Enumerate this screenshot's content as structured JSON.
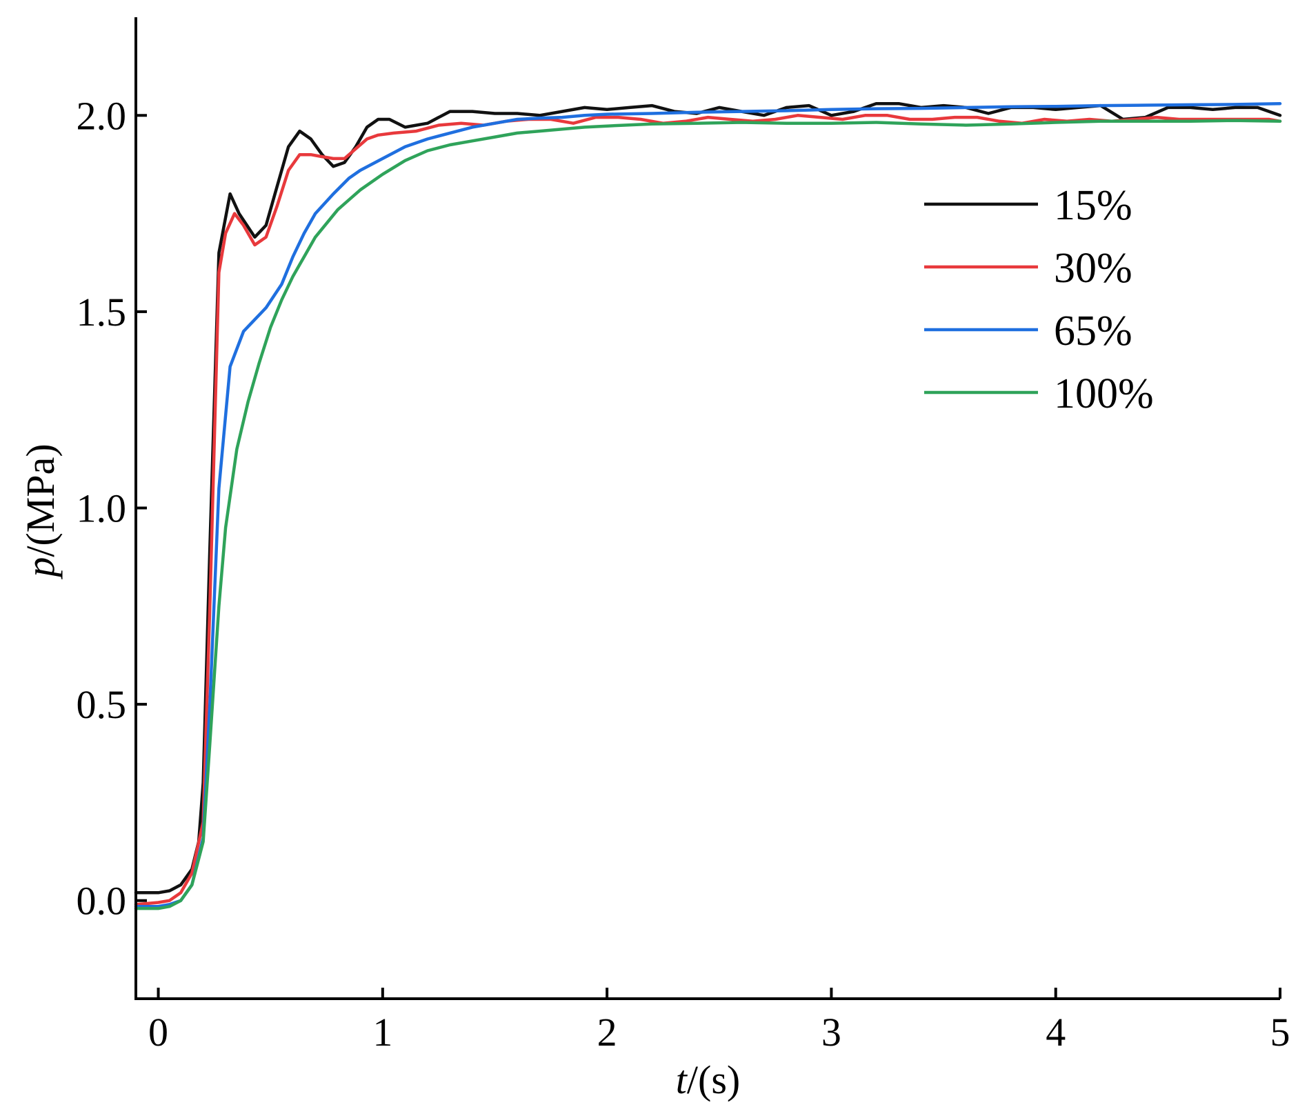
{
  "chart_data": {
    "type": "line",
    "title": "",
    "xlabel": {
      "var": "t",
      "unit": "/(s)"
    },
    "ylabel": {
      "var": "p",
      "unit": "/(MPa)"
    },
    "xlim": [
      -0.1,
      5.0
    ],
    "ylim": [
      -0.25,
      2.25
    ],
    "xticks": [
      0,
      1,
      2,
      3,
      4,
      5
    ],
    "xtick_labels": [
      "0",
      "1",
      "2",
      "3",
      "4",
      "5"
    ],
    "yticks": [
      0.0,
      0.5,
      1.0,
      1.5,
      2.0
    ],
    "ytick_labels": [
      "0.0",
      "0.5",
      "1.0",
      "1.5",
      "2.0"
    ],
    "grid": false,
    "legend_position": "right-center",
    "series": [
      {
        "name": "15%",
        "color": "#111111",
        "points": [
          [
            -0.1,
            0.02
          ],
          [
            0.0,
            0.02
          ],
          [
            0.05,
            0.025
          ],
          [
            0.1,
            0.04
          ],
          [
            0.15,
            0.08
          ],
          [
            0.18,
            0.15
          ],
          [
            0.2,
            0.3
          ],
          [
            0.23,
            0.9
          ],
          [
            0.27,
            1.65
          ],
          [
            0.32,
            1.8
          ],
          [
            0.36,
            1.75
          ],
          [
            0.43,
            1.69
          ],
          [
            0.48,
            1.72
          ],
          [
            0.53,
            1.82
          ],
          [
            0.58,
            1.92
          ],
          [
            0.63,
            1.96
          ],
          [
            0.68,
            1.94
          ],
          [
            0.73,
            1.9
          ],
          [
            0.78,
            1.87
          ],
          [
            0.83,
            1.88
          ],
          [
            0.88,
            1.92
          ],
          [
            0.93,
            1.97
          ],
          [
            0.98,
            1.99
          ],
          [
            1.03,
            1.99
          ],
          [
            1.1,
            1.97
          ],
          [
            1.2,
            1.98
          ],
          [
            1.3,
            2.01
          ],
          [
            1.4,
            2.01
          ],
          [
            1.5,
            2.005
          ],
          [
            1.6,
            2.005
          ],
          [
            1.7,
            2.0
          ],
          [
            1.8,
            2.01
          ],
          [
            1.9,
            2.02
          ],
          [
            2.0,
            2.015
          ],
          [
            2.1,
            2.02
          ],
          [
            2.2,
            2.025
          ],
          [
            2.3,
            2.01
          ],
          [
            2.4,
            2.005
          ],
          [
            2.5,
            2.02
          ],
          [
            2.6,
            2.01
          ],
          [
            2.7,
            2.0
          ],
          [
            2.8,
            2.02
          ],
          [
            2.9,
            2.025
          ],
          [
            3.0,
            2.0
          ],
          [
            3.1,
            2.01
          ],
          [
            3.2,
            2.03
          ],
          [
            3.3,
            2.03
          ],
          [
            3.4,
            2.02
          ],
          [
            3.5,
            2.025
          ],
          [
            3.6,
            2.02
          ],
          [
            3.7,
            2.005
          ],
          [
            3.8,
            2.02
          ],
          [
            3.9,
            2.02
          ],
          [
            4.0,
            2.015
          ],
          [
            4.1,
            2.02
          ],
          [
            4.2,
            2.025
          ],
          [
            4.3,
            1.99
          ],
          [
            4.4,
            1.995
          ],
          [
            4.5,
            2.02
          ],
          [
            4.6,
            2.02
          ],
          [
            4.7,
            2.015
          ],
          [
            4.8,
            2.02
          ],
          [
            4.9,
            2.02
          ],
          [
            5.0,
            2.0
          ]
        ]
      },
      {
        "name": "30%",
        "color": "#e8393c",
        "points": [
          [
            -0.1,
            -0.01
          ],
          [
            0.0,
            -0.005
          ],
          [
            0.05,
            0.0
          ],
          [
            0.1,
            0.02
          ],
          [
            0.15,
            0.07
          ],
          [
            0.2,
            0.2
          ],
          [
            0.23,
            0.75
          ],
          [
            0.27,
            1.6
          ],
          [
            0.3,
            1.7
          ],
          [
            0.34,
            1.75
          ],
          [
            0.38,
            1.72
          ],
          [
            0.43,
            1.67
          ],
          [
            0.48,
            1.69
          ],
          [
            0.53,
            1.77
          ],
          [
            0.58,
            1.86
          ],
          [
            0.63,
            1.9
          ],
          [
            0.68,
            1.9
          ],
          [
            0.73,
            1.895
          ],
          [
            0.78,
            1.89
          ],
          [
            0.83,
            1.89
          ],
          [
            0.88,
            1.915
          ],
          [
            0.93,
            1.94
          ],
          [
            0.98,
            1.95
          ],
          [
            1.05,
            1.955
          ],
          [
            1.15,
            1.96
          ],
          [
            1.25,
            1.975
          ],
          [
            1.35,
            1.98
          ],
          [
            1.45,
            1.975
          ],
          [
            1.55,
            1.985
          ],
          [
            1.65,
            1.99
          ],
          [
            1.75,
            1.99
          ],
          [
            1.85,
            1.98
          ],
          [
            1.95,
            1.995
          ],
          [
            2.05,
            1.995
          ],
          [
            2.15,
            1.99
          ],
          [
            2.25,
            1.98
          ],
          [
            2.35,
            1.985
          ],
          [
            2.45,
            1.995
          ],
          [
            2.55,
            1.99
          ],
          [
            2.65,
            1.985
          ],
          [
            2.75,
            1.99
          ],
          [
            2.85,
            2.0
          ],
          [
            2.95,
            1.995
          ],
          [
            3.05,
            1.99
          ],
          [
            3.15,
            2.0
          ],
          [
            3.25,
            2.0
          ],
          [
            3.35,
            1.99
          ],
          [
            3.45,
            1.99
          ],
          [
            3.55,
            1.995
          ],
          [
            3.65,
            1.995
          ],
          [
            3.75,
            1.985
          ],
          [
            3.85,
            1.98
          ],
          [
            3.95,
            1.99
          ],
          [
            4.05,
            1.985
          ],
          [
            4.15,
            1.99
          ],
          [
            4.25,
            1.985
          ],
          [
            4.35,
            1.99
          ],
          [
            4.45,
            1.995
          ],
          [
            4.55,
            1.99
          ],
          [
            4.65,
            1.99
          ],
          [
            4.75,
            1.99
          ],
          [
            4.85,
            1.99
          ],
          [
            4.95,
            1.99
          ],
          [
            5.0,
            1.985
          ]
        ]
      },
      {
        "name": "65%",
        "color": "#1f6fdf",
        "points": [
          [
            -0.1,
            -0.015
          ],
          [
            0.0,
            -0.015
          ],
          [
            0.05,
            -0.01
          ],
          [
            0.1,
            0.0
          ],
          [
            0.15,
            0.04
          ],
          [
            0.2,
            0.16
          ],
          [
            0.23,
            0.5
          ],
          [
            0.27,
            1.05
          ],
          [
            0.32,
            1.36
          ],
          [
            0.38,
            1.45
          ],
          [
            0.43,
            1.48
          ],
          [
            0.48,
            1.51
          ],
          [
            0.55,
            1.57
          ],
          [
            0.6,
            1.64
          ],
          [
            0.65,
            1.7
          ],
          [
            0.7,
            1.75
          ],
          [
            0.78,
            1.8
          ],
          [
            0.85,
            1.84
          ],
          [
            0.9,
            1.86
          ],
          [
            1.0,
            1.89
          ],
          [
            1.1,
            1.92
          ],
          [
            1.2,
            1.94
          ],
          [
            1.3,
            1.955
          ],
          [
            1.4,
            1.97
          ],
          [
            1.5,
            1.98
          ],
          [
            1.6,
            1.99
          ],
          [
            1.7,
            1.993
          ],
          [
            1.8,
            1.995
          ],
          [
            1.9,
            2.0
          ],
          [
            2.0,
            2.003
          ],
          [
            2.2,
            2.005
          ],
          [
            2.4,
            2.008
          ],
          [
            2.6,
            2.01
          ],
          [
            2.8,
            2.012
          ],
          [
            3.0,
            2.015
          ],
          [
            3.2,
            2.017
          ],
          [
            3.4,
            2.018
          ],
          [
            3.6,
            2.02
          ],
          [
            3.8,
            2.022
          ],
          [
            4.0,
            2.023
          ],
          [
            4.2,
            2.025
          ],
          [
            4.4,
            2.026
          ],
          [
            4.6,
            2.027
          ],
          [
            4.8,
            2.028
          ],
          [
            5.0,
            2.03
          ]
        ]
      },
      {
        "name": "100%",
        "color": "#2fa35a",
        "points": [
          [
            -0.1,
            -0.02
          ],
          [
            0.0,
            -0.02
          ],
          [
            0.05,
            -0.015
          ],
          [
            0.1,
            0.0
          ],
          [
            0.15,
            0.04
          ],
          [
            0.2,
            0.15
          ],
          [
            0.23,
            0.4
          ],
          [
            0.27,
            0.75
          ],
          [
            0.3,
            0.95
          ],
          [
            0.35,
            1.15
          ],
          [
            0.4,
            1.27
          ],
          [
            0.45,
            1.37
          ],
          [
            0.5,
            1.46
          ],
          [
            0.55,
            1.53
          ],
          [
            0.6,
            1.59
          ],
          [
            0.65,
            1.64
          ],
          [
            0.7,
            1.69
          ],
          [
            0.8,
            1.76
          ],
          [
            0.9,
            1.81
          ],
          [
            1.0,
            1.85
          ],
          [
            1.1,
            1.885
          ],
          [
            1.2,
            1.91
          ],
          [
            1.3,
            1.925
          ],
          [
            1.4,
            1.935
          ],
          [
            1.5,
            1.945
          ],
          [
            1.6,
            1.955
          ],
          [
            1.7,
            1.96
          ],
          [
            1.8,
            1.965
          ],
          [
            1.9,
            1.97
          ],
          [
            2.0,
            1.973
          ],
          [
            2.2,
            1.978
          ],
          [
            2.4,
            1.98
          ],
          [
            2.6,
            1.982
          ],
          [
            2.8,
            1.98
          ],
          [
            3.0,
            1.98
          ],
          [
            3.2,
            1.982
          ],
          [
            3.4,
            1.978
          ],
          [
            3.6,
            1.975
          ],
          [
            3.8,
            1.978
          ],
          [
            4.0,
            1.982
          ],
          [
            4.2,
            1.985
          ],
          [
            4.4,
            1.985
          ],
          [
            4.6,
            1.985
          ],
          [
            4.8,
            1.987
          ],
          [
            5.0,
            1.985
          ]
        ]
      }
    ]
  }
}
